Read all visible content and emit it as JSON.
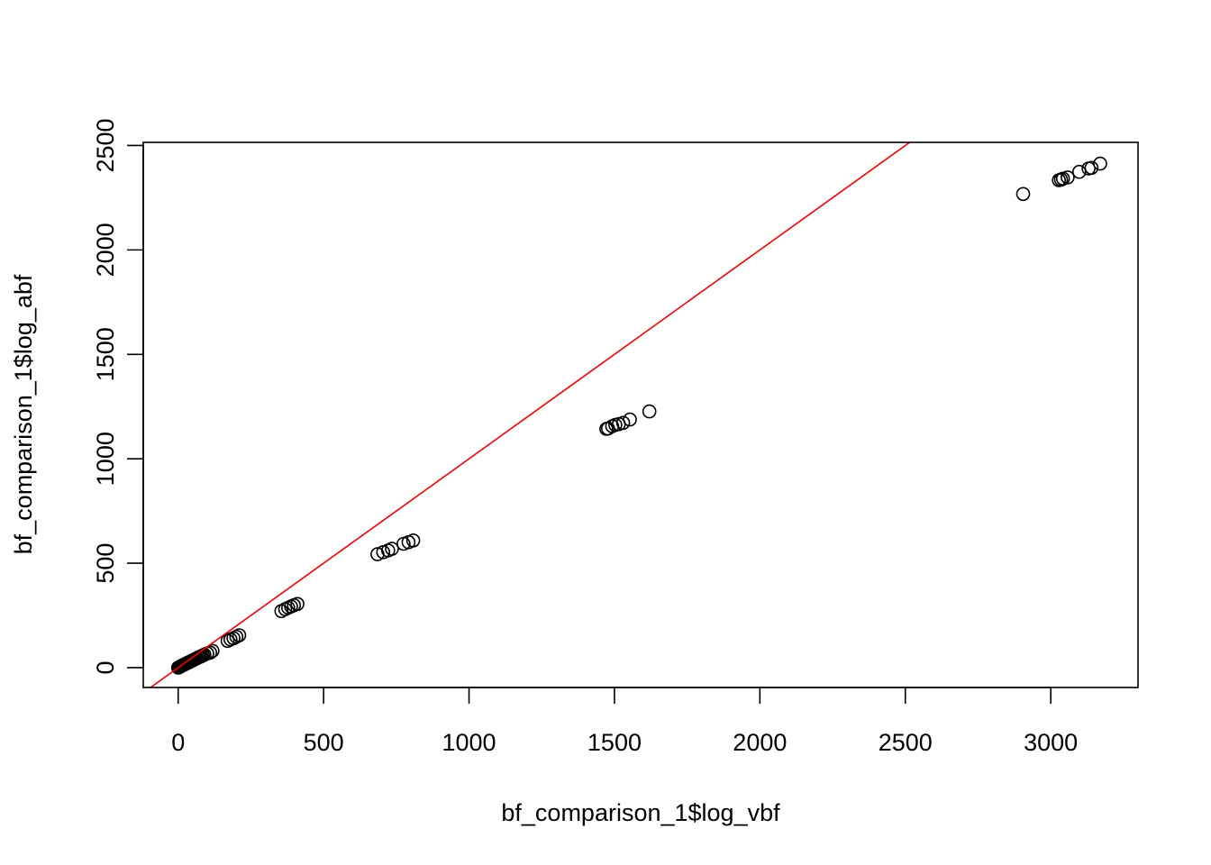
{
  "chart_data": {
    "type": "scatter",
    "title": "",
    "xlabel": "bf_comparison_1$log_vbf",
    "ylabel": "bf_comparison_1$log_abf",
    "xlim": [
      -120,
      3300
    ],
    "ylim": [
      -95,
      2515
    ],
    "x_ticks": [
      0,
      500,
      1000,
      1500,
      2000,
      2500,
      3000
    ],
    "x_tick_labels": [
      "0",
      "500",
      "1000",
      "1500",
      "2000",
      "2500",
      "3000"
    ],
    "y_ticks": [
      0,
      500,
      1000,
      1500,
      2000,
      2500
    ],
    "y_tick_labels": [
      "0",
      "500",
      "1000",
      "1500",
      "2000",
      "2500"
    ],
    "grid": false,
    "marker": "open-circle",
    "marker_color": "#000000",
    "reference_line": {
      "type": "identity",
      "intercept": 0,
      "slope": 1,
      "color": "#ff0000"
    },
    "points": [
      [
        0,
        0
      ],
      [
        3,
        2
      ],
      [
        6,
        4
      ],
      [
        9,
        7
      ],
      [
        12,
        9
      ],
      [
        15,
        11
      ],
      [
        18,
        13
      ],
      [
        21,
        15
      ],
      [
        24,
        17
      ],
      [
        28,
        20
      ],
      [
        32,
        23
      ],
      [
        36,
        25
      ],
      [
        40,
        28
      ],
      [
        44,
        31
      ],
      [
        48,
        34
      ],
      [
        52,
        36
      ],
      [
        56,
        39
      ],
      [
        60,
        42
      ],
      [
        65,
        45
      ],
      [
        70,
        49
      ],
      [
        75,
        52
      ],
      [
        80,
        55
      ],
      [
        85,
        59
      ],
      [
        90,
        62
      ],
      [
        100,
        68
      ],
      [
        110,
        72
      ],
      [
        118,
        80
      ],
      [
        170,
        128
      ],
      [
        180,
        135
      ],
      [
        190,
        141
      ],
      [
        200,
        148
      ],
      [
        210,
        155
      ],
      [
        355,
        271
      ],
      [
        368,
        280
      ],
      [
        378,
        287
      ],
      [
        388,
        293
      ],
      [
        398,
        299
      ],
      [
        410,
        305
      ],
      [
        685,
        543
      ],
      [
        705,
        553
      ],
      [
        722,
        561
      ],
      [
        735,
        569
      ],
      [
        775,
        593
      ],
      [
        792,
        601
      ],
      [
        808,
        609
      ],
      [
        1472,
        1143
      ],
      [
        1478,
        1145
      ],
      [
        1492,
        1156
      ],
      [
        1503,
        1162
      ],
      [
        1515,
        1166
      ],
      [
        1530,
        1172
      ],
      [
        1553,
        1188
      ],
      [
        1620,
        1227
      ],
      [
        2905,
        2268
      ],
      [
        3028,
        2334
      ],
      [
        3035,
        2337
      ],
      [
        3042,
        2341
      ],
      [
        3058,
        2347
      ],
      [
        3098,
        2374
      ],
      [
        3130,
        2390
      ],
      [
        3140,
        2393
      ],
      [
        3170,
        2413
      ]
    ]
  }
}
